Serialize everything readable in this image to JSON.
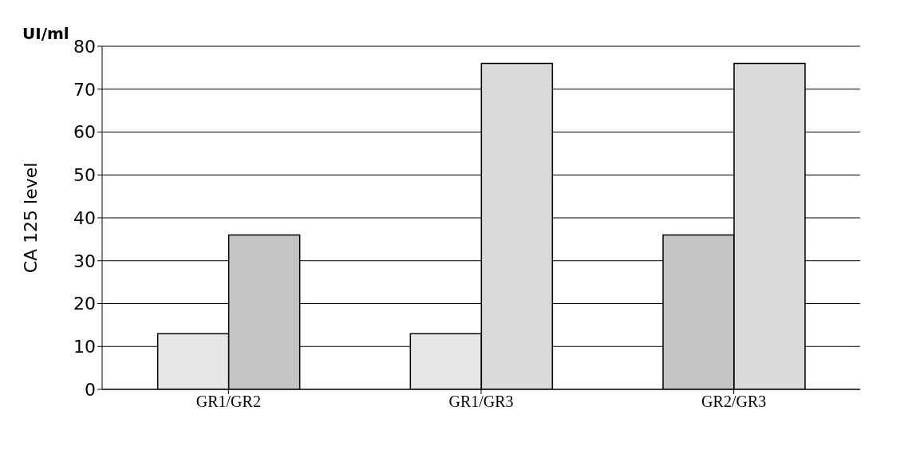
{
  "chart_data": {
    "type": "bar",
    "ylabel": "CA 125 level",
    "annotations": [
      "UI/ml"
    ],
    "categories": [
      "GR1/GR2",
      "GR1/GR3",
      "GR2/GR3"
    ],
    "series": [
      {
        "colors": [
          "#e6e6e6",
          "#e6e6e6",
          "#c4c4c4"
        ],
        "values": [
          13,
          13,
          36
        ]
      },
      {
        "colors": [
          "#c4c4c4",
          "#d9d9d9",
          "#d9d9d9"
        ],
        "values": [
          36,
          76,
          76
        ]
      }
    ],
    "ylim": [
      0,
      80
    ],
    "yticks": [
      0,
      10,
      20,
      30,
      40,
      50,
      60,
      70,
      80
    ],
    "grid": "y"
  }
}
